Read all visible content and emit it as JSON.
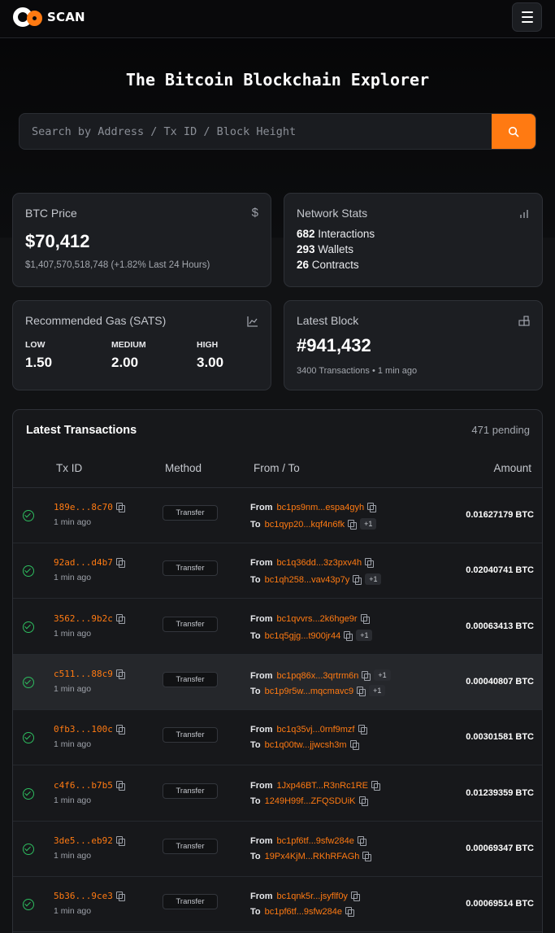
{
  "brand": {
    "name": "SCAN"
  },
  "hero": {
    "title": "The Bitcoin Blockchain Explorer",
    "search_placeholder": "Search by Address / Tx ID / Block Height"
  },
  "btc_price": {
    "title": "BTC Price",
    "value": "$70,412",
    "sub": "$1,407,570,518,748 (+1.82% Last 24 Hours)"
  },
  "network": {
    "title": "Network Stats",
    "interactions_count": "682",
    "interactions_label": "Interactions",
    "wallets_count": "293",
    "wallets_label": "Wallets",
    "contracts_count": "26",
    "contracts_label": "Contracts"
  },
  "gas": {
    "title": "Recommended Gas (SATS)",
    "low_label": "LOW",
    "low_value": "1.50",
    "medium_label": "MEDIUM",
    "medium_value": "2.00",
    "high_label": "HIGH",
    "high_value": "3.00"
  },
  "latest_block": {
    "title": "Latest Block",
    "value": "#941,432",
    "sub": "3400 Transactions • 1 min ago"
  },
  "transactions": {
    "title": "Latest Transactions",
    "pending": "471 pending",
    "columns": {
      "txid": "Tx ID",
      "method": "Method",
      "fromto": "From / To",
      "amount": "Amount"
    },
    "from_label": "From",
    "to_label": "To",
    "rows": [
      {
        "txid": "189e...8c70",
        "time": "1 min ago",
        "method": "Transfer",
        "from": "bc1ps9nm...espa4gyh",
        "from_extra": "",
        "to": "bc1qyp20...kqf4n6fk",
        "to_extra": "+1",
        "amount": "0.01627179 BTC"
      },
      {
        "txid": "92ad...d4b7",
        "time": "1 min ago",
        "method": "Transfer",
        "from": "bc1q36dd...3z3pxv4h",
        "from_extra": "",
        "to": "bc1qh258...vav43p7y",
        "to_extra": "+1",
        "amount": "0.02040741 BTC"
      },
      {
        "txid": "3562...9b2c",
        "time": "1 min ago",
        "method": "Transfer",
        "from": "bc1qvvrs...2k6hge9r",
        "from_extra": "",
        "to": "bc1q5gjg...t900jr44",
        "to_extra": "+1",
        "amount": "0.00063413 BTC"
      },
      {
        "txid": "c511...88c9",
        "time": "1 min ago",
        "method": "Transfer",
        "from": "bc1pq86x...3qrtrm6n",
        "from_extra": "+1",
        "to": "bc1p9r5w...mqcmavc9",
        "to_extra": "+1",
        "amount": "0.00040807 BTC"
      },
      {
        "txid": "0fb3...100c",
        "time": "1 min ago",
        "method": "Transfer",
        "from": "bc1q35vj...0rnf9mzf",
        "from_extra": "",
        "to": "bc1q00tw...jjwcsh3m",
        "to_extra": "",
        "amount": "0.00301581 BTC"
      },
      {
        "txid": "c4f6...b7b5",
        "time": "1 min ago",
        "method": "Transfer",
        "from": "1Jxp46BT...R3nRc1RE",
        "from_extra": "",
        "to": "1249H99f...ZFQSDUiK",
        "to_extra": "",
        "amount": "0.01239359 BTC"
      },
      {
        "txid": "3de5...eb92",
        "time": "1 min ago",
        "method": "Transfer",
        "from": "bc1pf6tf...9sfw284e",
        "from_extra": "",
        "to": "19Px4KjM...RKhRFAGh",
        "to_extra": "",
        "amount": "0.00069347 BTC"
      },
      {
        "txid": "5b36...9ce3",
        "time": "1 min ago",
        "method": "Transfer",
        "from": "bc1qnk5r...jsyflf0y",
        "from_extra": "",
        "to": "bc1pf6tf...9sfw284e",
        "to_extra": "",
        "amount": "0.00069514 BTC"
      }
    ]
  }
}
